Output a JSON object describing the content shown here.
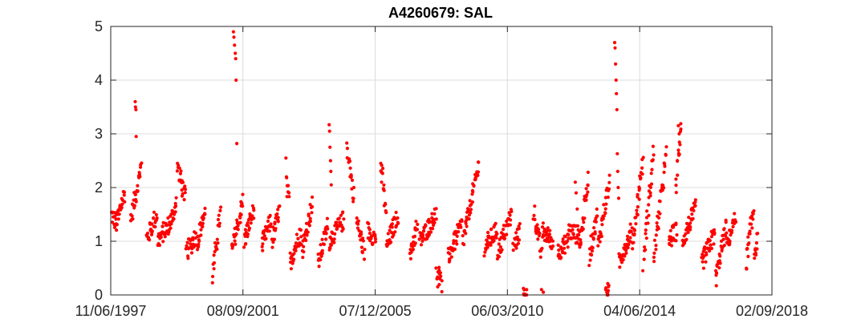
{
  "chart_data": {
    "type": "scatter",
    "title": "A4260679: SAL",
    "xlabel": "",
    "ylabel": "",
    "x_axis_type": "date",
    "xlim": [
      "1997-06-11",
      "2018-09-02"
    ],
    "ylim": [
      0,
      5
    ],
    "x_ticks": [
      {
        "date": "1997-06-11",
        "label": "11/06/1997"
      },
      {
        "date": "2001-09-08",
        "label": "08/09/2001"
      },
      {
        "date": "2005-12-07",
        "label": "07/12/2005"
      },
      {
        "date": "2010-03-06",
        "label": "06/03/2010"
      },
      {
        "date": "2014-06-04",
        "label": "04/06/2014"
      },
      {
        "date": "2018-09-02",
        "label": "02/09/2018"
      }
    ],
    "y_ticks": [
      0,
      1,
      2,
      3,
      4,
      5
    ],
    "grid": true,
    "marker_color": "#ff0000",
    "segments": [
      [
        "1997-06-11",
        1.5,
        "1997-08-15",
        1.35
      ],
      [
        "1997-08-15",
        1.3,
        "1997-11-20",
        1.9
      ],
      [
        "1998-02-01",
        1.4,
        "1998-06-01",
        2.4
      ],
      [
        "1998-08-10",
        1.05,
        "1998-12-01",
        1.5
      ],
      [
        "1998-12-15",
        1.0,
        "1999-04-15",
        1.3
      ],
      [
        "1999-04-20",
        1.25,
        "1999-07-20",
        1.7
      ],
      [
        "1999-08-01",
        2.4,
        "1999-11-01",
        1.8
      ],
      [
        "1999-11-15",
        0.8,
        "2000-03-10",
        1.1
      ],
      [
        "2000-03-20",
        0.95,
        "2000-06-20",
        1.55
      ],
      [
        "2000-09-15",
        0.35,
        "2000-12-20",
        1.55
      ],
      [
        "2001-05-01",
        0.8,
        "2001-09-10",
        1.75
      ],
      [
        "2001-09-20",
        1.0,
        "2002-01-15",
        1.6
      ],
      [
        "2002-04-15",
        0.9,
        "2002-08-01",
        1.4
      ],
      [
        "2002-08-15",
        1.0,
        "2002-11-15",
        1.6
      ],
      [
        "2003-02-01",
        2.1,
        "2003-03-01",
        1.7
      ],
      [
        "2003-03-15",
        0.6,
        "2003-07-20",
        1.2
      ],
      [
        "2003-08-01",
        0.8,
        "2003-12-01",
        1.7
      ],
      [
        "2004-02-10",
        0.6,
        "2004-06-01",
        1.3
      ],
      [
        "2004-06-15",
        1.0,
        "2004-12-01",
        1.4
      ],
      [
        "2005-01-10",
        2.8,
        "2005-04-01",
        1.8
      ],
      [
        "2005-05-01",
        1.4,
        "2005-08-01",
        0.8
      ],
      [
        "2005-09-10",
        1.2,
        "2005-12-15",
        1.05
      ],
      [
        "2006-02-15",
        2.4,
        "2006-04-15",
        1.5
      ],
      [
        "2006-04-20",
        0.9,
        "2006-09-01",
        1.5
      ],
      [
        "2007-01-20",
        0.7,
        "2007-04-15",
        1.3
      ],
      [
        "2007-05-15",
        1.0,
        "2007-11-20",
        1.5
      ],
      [
        "2007-12-10",
        0.5,
        "2008-01-25",
        0.1
      ],
      [
        "2008-04-10",
        0.7,
        "2008-09-15",
        1.3
      ],
      [
        "2008-10-01",
        1.0,
        "2009-04-01",
        2.4
      ],
      [
        "2009-06-15",
        0.9,
        "2009-11-01",
        1.2
      ],
      [
        "2009-11-15",
        0.8,
        "2010-04-20",
        1.5
      ],
      [
        "2010-05-15",
        0.9,
        "2010-08-01",
        1.2
      ],
      [
        "2010-09-10",
        0.02,
        "2010-10-20",
        0.02
      ],
      [
        "2011-01-10",
        1.55,
        "2011-04-15",
        0.7
      ],
      [
        "2011-04-20",
        1.2,
        "2011-08-20",
        1.0
      ],
      [
        "2011-10-20",
        0.8,
        "2012-02-15",
        1.0
      ],
      [
        "2012-02-20",
        1.2,
        "2012-07-01",
        1.1
      ],
      [
        "2012-07-05",
        0.9,
        "2012-10-10",
        2.2
      ],
      [
        "2012-10-20",
        0.7,
        "2013-01-20",
        1.5
      ],
      [
        "2013-02-01",
        0.9,
        "2013-06-15",
        2.1
      ],
      [
        "2013-05-10",
        0.05,
        "2013-06-10",
        0.05
      ],
      [
        "2013-10-01",
        0.6,
        "2014-03-01",
        1.2
      ],
      [
        "2014-03-10",
        0.9,
        "2014-07-10",
        2.5
      ],
      [
        "2014-07-15",
        0.6,
        "2014-11-15",
        2.7
      ],
      [
        "2014-11-20",
        0.7,
        "2015-04-10",
        2.6
      ],
      [
        "2015-05-10",
        1.0,
        "2015-08-10",
        1.2
      ],
      [
        "2015-08-01",
        2.0,
        "2015-10-01",
        3.1
      ],
      [
        "2015-10-15",
        1.0,
        "2016-03-20",
        1.6
      ],
      [
        "2016-06-01",
        0.6,
        "2016-11-01",
        1.15
      ],
      [
        "2016-11-10",
        0.3,
        "2017-03-15",
        1.3
      ],
      [
        "2017-03-20",
        0.9,
        "2017-07-01",
        1.45
      ],
      [
        "2017-11-01",
        0.6,
        "2018-02-01",
        1.6
      ],
      [
        "2018-02-05",
        0.8,
        "2018-03-20",
        1.0
      ]
    ],
    "points": [
      [
        "1998-03-25",
        3.6
      ],
      [
        "1998-03-28",
        3.5
      ],
      [
        "1998-04-02",
        3.45
      ],
      [
        "1998-04-05",
        2.95
      ],
      [
        "2001-05-20",
        4.9
      ],
      [
        "2001-05-25",
        4.8
      ],
      [
        "2001-06-02",
        4.65
      ],
      [
        "2001-06-10",
        4.5
      ],
      [
        "2001-06-15",
        4.4
      ],
      [
        "2001-06-20",
        4.0
      ],
      [
        "2001-06-28",
        2.82
      ],
      [
        "2004-06-15",
        3.17
      ],
      [
        "2004-06-20",
        3.05
      ],
      [
        "2004-06-25",
        2.75
      ],
      [
        "2004-07-01",
        2.5
      ],
      [
        "2004-07-05",
        2.3
      ],
      [
        "2004-07-10",
        2.05
      ],
      [
        "2003-01-25",
        2.55
      ],
      [
        "2006-02-10",
        2.45
      ],
      [
        "2006-02-15",
        2.3
      ],
      [
        "2006-02-20",
        2.1
      ],
      [
        "2007-11-20",
        0.5
      ],
      [
        "2007-12-01",
        0.3
      ],
      [
        "2007-12-10",
        0.15
      ],
      [
        "2010-09-15",
        0.02
      ],
      [
        "2011-04-10",
        0.1
      ],
      [
        "2011-05-01",
        0.05
      ],
      [
        "2013-08-15",
        4.7
      ],
      [
        "2013-08-20",
        4.6
      ],
      [
        "2013-08-25",
        4.3
      ],
      [
        "2013-09-01",
        4.0
      ],
      [
        "2013-09-05",
        3.75
      ],
      [
        "2013-09-10",
        3.45
      ],
      [
        "2013-09-15",
        2.63
      ],
      [
        "2013-09-20",
        2.3
      ],
      [
        "2013-09-25",
        2.0
      ],
      [
        "2013-10-01",
        1.8
      ],
      [
        "2012-05-10",
        2.1
      ],
      [
        "2012-05-20",
        1.9
      ],
      [
        "2012-06-01",
        1.6
      ],
      [
        "2015-09-01",
        3.15
      ],
      [
        "2015-09-10",
        3.0
      ],
      [
        "2015-09-20",
        2.8
      ],
      [
        "2013-05-01",
        0.1
      ],
      [
        "2013-05-15",
        0.05
      ],
      [
        "2013-06-01",
        0.08
      ]
    ]
  }
}
